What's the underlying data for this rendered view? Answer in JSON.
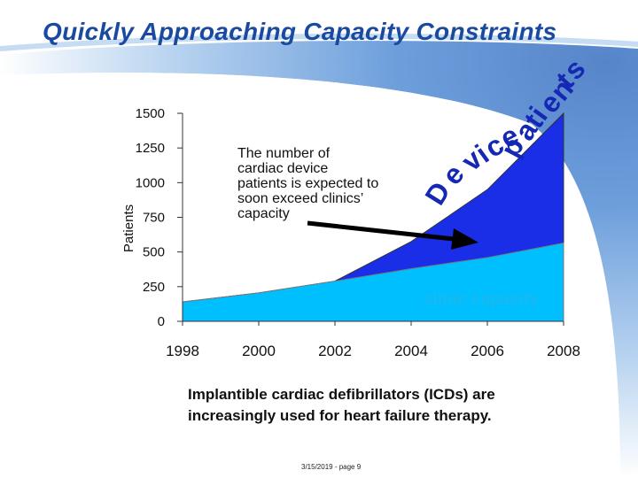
{
  "title": "Quickly Approaching Capacity Constraints",
  "caption": "Implantible cardiac defibrillators (ICDs) are increasingly used for heart failure therapy.",
  "footer": "3/15/2019 - page 9",
  "chart_data": {
    "type": "area",
    "ylabel": "Patients",
    "xlabel": "",
    "xlim": [
      1998,
      2008
    ],
    "ylim": [
      0,
      1500
    ],
    "xticks": [
      "1998",
      "2000",
      "2002",
      "2004",
      "2006",
      "2008"
    ],
    "yticks": [
      "0",
      "250",
      "500",
      "750",
      "1000",
      "1250",
      "1500"
    ],
    "series": [
      {
        "name": "clinic capacity",
        "label": "clinic capacity",
        "color": "#00bfff",
        "x": [
          1998,
          2000,
          2002,
          2004,
          2006,
          2008
        ],
        "values": [
          140,
          205,
          290,
          380,
          460,
          565
        ]
      },
      {
        "name": "Device patients",
        "label_chars": [
          "D",
          "e",
          "v",
          "i",
          "c",
          "e",
          "p",
          "a",
          "t",
          "i",
          "e",
          "n",
          "t",
          "s"
        ],
        "color": "#1a2ee8",
        "x": [
          1998,
          2000,
          2002,
          2004,
          2006,
          2008
        ],
        "values": [
          140,
          205,
          290,
          575,
          950,
          1500
        ]
      }
    ],
    "annotation": "The number of cardiac device patients is expected to soon exceed clinics’ capacity"
  }
}
